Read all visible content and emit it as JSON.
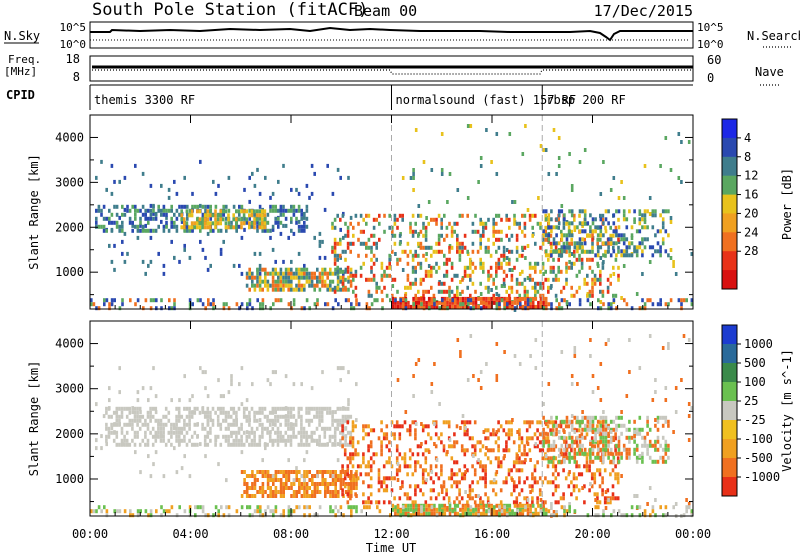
{
  "header": {
    "title": "South Pole Station (fitACF)",
    "beam": "Beam 00",
    "date": "17/Dec/2015"
  },
  "summary_panel": {
    "nsky_label": "N.Sky",
    "nsky_ticks": [
      "10^5",
      "10^0"
    ],
    "nsearch_label": "N.Search",
    "nsearch_ticks": [
      "10^5",
      "10^0"
    ],
    "freq_label_1": "Freq.",
    "freq_label_2": "[MHz]",
    "freq_ticks": [
      "18",
      "8"
    ],
    "nave_label": "Nave",
    "nave_ticks": [
      "60",
      "0"
    ],
    "cpid_label": "CPID",
    "cpid_segments": [
      {
        "label": "themis 3300 RF",
        "start_hour": 0,
        "end_hour": 12
      },
      {
        "label": "normalsound (fast) 157 RF",
        "start_hour": 12,
        "end_hour": 18
      },
      {
        "label": "rbsp 200 RF",
        "start_hour": 18,
        "end_hour": 24
      }
    ]
  },
  "x_axis": {
    "label": "Time UT",
    "ticks": [
      "00:00",
      "04:00",
      "08:00",
      "12:00",
      "16:00",
      "20:00",
      "00:00"
    ]
  },
  "chart_data": [
    {
      "type": "heatmap",
      "panel": "power",
      "ylabel": "Slant Range [km]",
      "yticks": [
        "1000",
        "2000",
        "3000",
        "4000"
      ],
      "ylim": [
        180,
        4500
      ],
      "xlim_hours": [
        0,
        24
      ],
      "colorbar_label": "Power [dB]",
      "colorbar_ticks": [
        "4",
        "8",
        "12",
        "16",
        "20",
        "24",
        "28"
      ],
      "colorbar_colors": [
        "#1c28e6",
        "#2a49b0",
        "#3f7d8c",
        "#5aa760",
        "#e8c21c",
        "#f0a020",
        "#f07020",
        "#e83218",
        "#d81010"
      ],
      "scatter_regions": [
        {
          "t0": 0.2,
          "t1": 10.6,
          "r0": 1000,
          "r1": 3500,
          "density": 0.05,
          "colors": [
            "#2a49b0",
            "#3f7d8c"
          ]
        },
        {
          "t0": 0.2,
          "t1": 8.6,
          "r0": 1900,
          "r1": 2500,
          "density": 0.5,
          "colors": [
            "#2a49b0",
            "#3f7d8c",
            "#5aa760"
          ]
        },
        {
          "t0": 3.6,
          "t1": 7.0,
          "r0": 2000,
          "r1": 2400,
          "density": 0.75,
          "colors": [
            "#5aa760",
            "#e8c21c",
            "#f0a020"
          ]
        },
        {
          "t0": 6.2,
          "t1": 10.4,
          "r0": 650,
          "r1": 1100,
          "density": 0.75,
          "colors": [
            "#3f7d8c",
            "#5aa760",
            "#e8c21c",
            "#f07020"
          ]
        },
        {
          "t0": 12.0,
          "t1": 24.0,
          "r0": 180,
          "r1": 4300,
          "density": 0.03,
          "colors": [
            "#3f7d8c",
            "#5aa760",
            "#e8c21c"
          ]
        },
        {
          "t0": 9.6,
          "t1": 21.0,
          "r0": 450,
          "r1": 2300,
          "density": 0.3,
          "colors": [
            "#3f7d8c",
            "#5aa760",
            "#e8c21c",
            "#f07020",
            "#e83218"
          ]
        },
        {
          "t0": 18.0,
          "t1": 23.0,
          "r0": 1400,
          "r1": 2400,
          "density": 0.45,
          "colors": [
            "#2a49b0",
            "#3f7d8c",
            "#5aa760",
            "#e8c21c"
          ]
        },
        {
          "t0": 12.0,
          "t1": 18.2,
          "r0": 230,
          "r1": 450,
          "density": 0.85,
          "colors": [
            "#e83218",
            "#d81010",
            "#f07020"
          ]
        },
        {
          "t0": 0.0,
          "t1": 24.0,
          "r0": 200,
          "r1": 420,
          "density": 0.3,
          "colors": [
            "#f07020",
            "#5aa760",
            "#2a49b0"
          ]
        }
      ]
    },
    {
      "type": "heatmap",
      "panel": "velocity",
      "ylabel": "Slant Range [km]",
      "yticks": [
        "1000",
        "2000",
        "3000",
        "4000"
      ],
      "ylim": [
        180,
        4500
      ],
      "xlim_hours": [
        0,
        24
      ],
      "colorbar_label": "Velocity [m s^-1]",
      "colorbar_ticks": [
        "1000",
        "500",
        "100",
        "25",
        "-25",
        "-100",
        "-500",
        "-1000"
      ],
      "colorbar_colors": [
        "#1c3cd0",
        "#2a6a9a",
        "#3a8a4a",
        "#6ac050",
        "#c8c8c0",
        "#f0c020",
        "#f0a020",
        "#f07020",
        "#e83018"
      ],
      "scatter_regions": [
        {
          "t0": 0.6,
          "t1": 10.4,
          "r0": 1800,
          "r1": 2600,
          "density": 0.55,
          "colors": [
            "#c8c8c0"
          ]
        },
        {
          "t0": 6.0,
          "t1": 10.6,
          "r0": 600,
          "r1": 1200,
          "density": 0.7,
          "colors": [
            "#f0a020",
            "#f07020"
          ]
        },
        {
          "t0": 0.2,
          "t1": 10.6,
          "r0": 1000,
          "r1": 3500,
          "density": 0.05,
          "colors": [
            "#c8c8c0"
          ]
        },
        {
          "t0": 10.0,
          "t1": 21.0,
          "r0": 450,
          "r1": 2300,
          "density": 0.3,
          "colors": [
            "#f07020",
            "#e83018",
            "#f0a020"
          ]
        },
        {
          "t0": 18.0,
          "t1": 23.0,
          "r0": 1400,
          "r1": 2400,
          "density": 0.45,
          "colors": [
            "#c8c8c0",
            "#f07020",
            "#6ac050"
          ]
        },
        {
          "t0": 12.0,
          "t1": 24.0,
          "r0": 180,
          "r1": 4300,
          "density": 0.03,
          "colors": [
            "#c8c8c0",
            "#f07020"
          ]
        },
        {
          "t0": 12.0,
          "t1": 18.2,
          "r0": 230,
          "r1": 450,
          "density": 0.85,
          "colors": [
            "#f0a020",
            "#f07020",
            "#6ac050"
          ]
        },
        {
          "t0": 0.0,
          "t1": 24.0,
          "r0": 200,
          "r1": 420,
          "density": 0.3,
          "colors": [
            "#f0a020",
            "#6ac050",
            "#c8c8c0"
          ]
        }
      ]
    }
  ]
}
